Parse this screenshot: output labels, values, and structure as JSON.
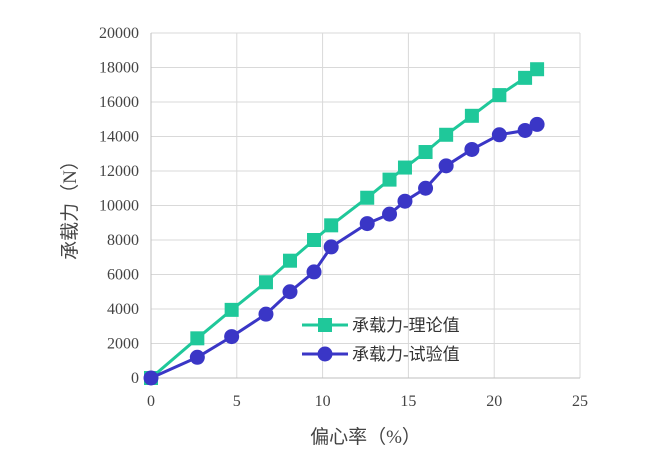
{
  "chart_data": {
    "type": "line",
    "xlabel": "偏心率（%）",
    "ylabel": "承载力（N）",
    "xlim": [
      0,
      25
    ],
    "ylim": [
      0,
      20000
    ],
    "xticks": [
      0,
      5,
      10,
      15,
      20,
      25
    ],
    "yticks": [
      0,
      2000,
      4000,
      6000,
      8000,
      10000,
      12000,
      14000,
      16000,
      18000,
      20000
    ],
    "grid": true,
    "legend_position": "bottom-right",
    "series": [
      {
        "name": "承载力-理论值",
        "color": "#1fc89a",
        "marker": "square",
        "x": [
          0,
          2.7,
          4.7,
          6.7,
          8.1,
          9.5,
          10.5,
          12.6,
          13.9,
          14.8,
          16.0,
          17.2,
          18.7,
          20.3,
          21.8,
          22.5
        ],
        "y": [
          0,
          2300,
          3950,
          5550,
          6800,
          8000,
          8850,
          10450,
          11500,
          12200,
          13100,
          14100,
          15200,
          16400,
          17400,
          17900
        ]
      },
      {
        "name": "承载力-试验值",
        "color": "#3a36c6",
        "marker": "circle",
        "x": [
          0,
          2.7,
          4.7,
          6.7,
          8.1,
          9.5,
          10.5,
          12.6,
          13.9,
          14.8,
          16.0,
          17.2,
          18.7,
          20.3,
          21.8,
          22.5
        ],
        "y": [
          0,
          1200,
          2400,
          3700,
          5000,
          6150,
          7600,
          8950,
          9500,
          10250,
          11000,
          12300,
          13250,
          14100,
          14350,
          14700
        ]
      }
    ]
  }
}
